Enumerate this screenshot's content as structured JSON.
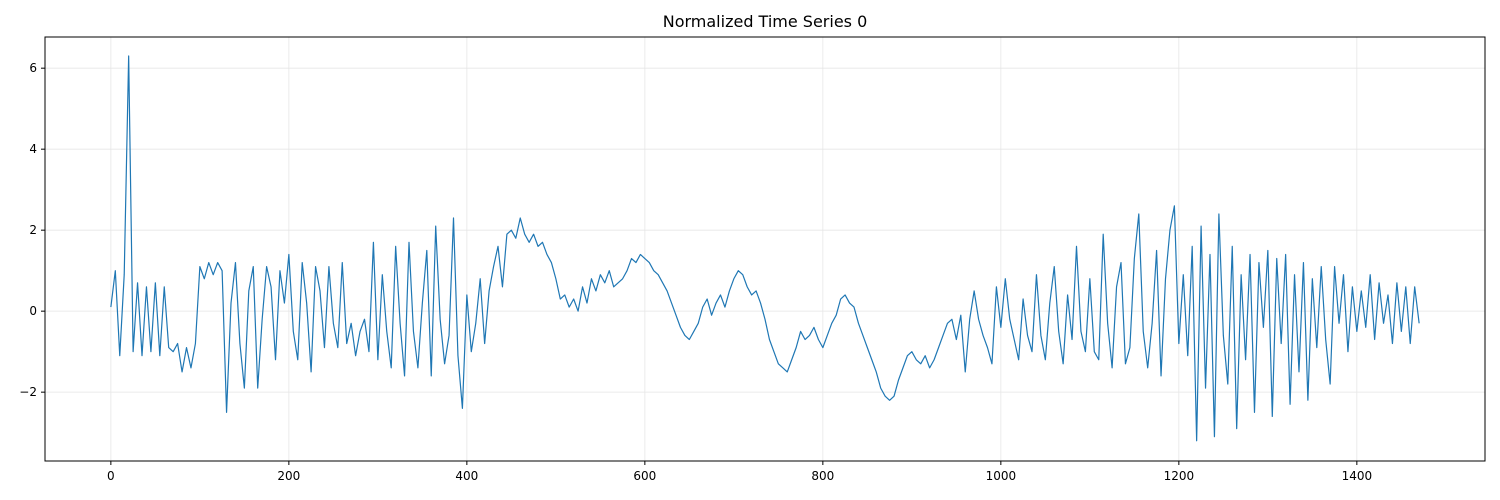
{
  "chart_data": {
    "type": "line",
    "title": "Normalized Time Series 0",
    "color": "#1f77b4",
    "grid": true,
    "xlim": [
      -74,
      1544
    ],
    "xticks": [
      0,
      200,
      400,
      600,
      800,
      1000,
      1200,
      1400
    ],
    "ylim": [
      -3.7,
      6.77
    ],
    "yticks": [
      {
        "value": -2,
        "label": "−2"
      },
      0,
      2,
      4,
      6
    ],
    "x": [
      0,
      5,
      10,
      15,
      20,
      25,
      30,
      35,
      40,
      45,
      50,
      55,
      60,
      65,
      70,
      75,
      80,
      85,
      90,
      95,
      100,
      105,
      110,
      115,
      120,
      125,
      130,
      135,
      140,
      145,
      150,
      155,
      160,
      165,
      170,
      175,
      180,
      185,
      190,
      195,
      200,
      205,
      210,
      215,
      220,
      225,
      230,
      235,
      240,
      245,
      250,
      255,
      260,
      265,
      270,
      275,
      280,
      285,
      290,
      295,
      300,
      305,
      310,
      315,
      320,
      325,
      330,
      335,
      340,
      345,
      350,
      355,
      360,
      365,
      370,
      375,
      380,
      385,
      390,
      395,
      400,
      405,
      410,
      415,
      420,
      425,
      430,
      435,
      440,
      445,
      450,
      455,
      460,
      465,
      470,
      475,
      480,
      485,
      490,
      495,
      500,
      505,
      510,
      515,
      520,
      525,
      530,
      535,
      540,
      545,
      550,
      555,
      560,
      565,
      570,
      575,
      580,
      585,
      590,
      595,
      600,
      605,
      610,
      615,
      620,
      625,
      630,
      635,
      640,
      645,
      650,
      655,
      660,
      665,
      670,
      675,
      680,
      685,
      690,
      695,
      700,
      705,
      710,
      715,
      720,
      725,
      730,
      735,
      740,
      745,
      750,
      755,
      760,
      765,
      770,
      775,
      780,
      785,
      790,
      795,
      800,
      805,
      810,
      815,
      820,
      825,
      830,
      835,
      840,
      845,
      850,
      855,
      860,
      865,
      870,
      875,
      880,
      885,
      890,
      895,
      900,
      905,
      910,
      915,
      920,
      925,
      930,
      935,
      940,
      945,
      950,
      955,
      960,
      965,
      970,
      975,
      980,
      985,
      990,
      995,
      1000,
      1005,
      1010,
      1015,
      1020,
      1025,
      1030,
      1035,
      1040,
      1045,
      1050,
      1055,
      1060,
      1065,
      1070,
      1075,
      1080,
      1085,
      1090,
      1095,
      1100,
      1105,
      1110,
      1115,
      1120,
      1125,
      1130,
      1135,
      1140,
      1145,
      1150,
      1155,
      1160,
      1165,
      1170,
      1175,
      1180,
      1185,
      1190,
      1195,
      1200,
      1205,
      1210,
      1215,
      1220,
      1225,
      1230,
      1235,
      1240,
      1245,
      1250,
      1255,
      1260,
      1265,
      1270,
      1275,
      1280,
      1285,
      1290,
      1295,
      1300,
      1305,
      1310,
      1315,
      1320,
      1325,
      1330,
      1335,
      1340,
      1345,
      1350,
      1355,
      1360,
      1365,
      1370,
      1375,
      1380,
      1385,
      1390,
      1395,
      1400,
      1405,
      1410,
      1415,
      1420,
      1425,
      1430,
      1435,
      1440,
      1445,
      1450,
      1455,
      1460,
      1465,
      1470
    ],
    "values": [
      0.1,
      1.0,
      -1.1,
      0.9,
      6.3,
      -1.0,
      0.7,
      -1.1,
      0.6,
      -1.0,
      0.7,
      -1.1,
      0.6,
      -0.9,
      -1.0,
      -0.8,
      -1.5,
      -0.9,
      -1.4,
      -0.8,
      1.1,
      0.8,
      1.2,
      0.9,
      1.2,
      1.0,
      -2.5,
      0.2,
      1.2,
      -0.8,
      -1.9,
      0.5,
      1.1,
      -1.9,
      -0.2,
      1.1,
      0.6,
      -1.2,
      1.0,
      0.2,
      1.4,
      -0.5,
      -1.2,
      1.2,
      0.2,
      -1.5,
      1.1,
      0.5,
      -0.9,
      1.1,
      -0.3,
      -0.9,
      1.2,
      -0.8,
      -0.3,
      -1.1,
      -0.5,
      -0.2,
      -1.0,
      1.7,
      -1.2,
      0.9,
      -0.5,
      -1.4,
      1.6,
      -0.3,
      -1.6,
      1.7,
      -0.5,
      -1.4,
      0.2,
      1.5,
      -1.6,
      2.1,
      -0.2,
      -1.3,
      -0.6,
      2.3,
      -1.1,
      -2.4,
      0.4,
      -1.0,
      -0.3,
      0.8,
      -0.8,
      0.5,
      1.1,
      1.6,
      0.6,
      1.9,
      2.0,
      1.8,
      2.3,
      1.9,
      1.7,
      1.9,
      1.6,
      1.7,
      1.4,
      1.2,
      0.8,
      0.3,
      0.4,
      0.1,
      0.3,
      0.0,
      0.6,
      0.2,
      0.8,
      0.5,
      0.9,
      0.7,
      1.0,
      0.6,
      0.7,
      0.8,
      1.0,
      1.3,
      1.2,
      1.4,
      1.3,
      1.2,
      1.0,
      0.9,
      0.7,
      0.5,
      0.2,
      -0.1,
      -0.4,
      -0.6,
      -0.7,
      -0.5,
      -0.3,
      0.1,
      0.3,
      -0.1,
      0.2,
      0.4,
      0.1,
      0.5,
      0.8,
      1.0,
      0.9,
      0.6,
      0.4,
      0.5,
      0.2,
      -0.2,
      -0.7,
      -1.0,
      -1.3,
      -1.4,
      -1.5,
      -1.2,
      -0.9,
      -0.5,
      -0.7,
      -0.6,
      -0.4,
      -0.7,
      -0.9,
      -0.6,
      -0.3,
      -0.1,
      0.3,
      0.4,
      0.2,
      0.1,
      -0.3,
      -0.6,
      -0.9,
      -1.2,
      -1.5,
      -1.9,
      -2.1,
      -2.2,
      -2.1,
      -1.7,
      -1.4,
      -1.1,
      -1.0,
      -1.2,
      -1.3,
      -1.1,
      -1.4,
      -1.2,
      -0.9,
      -0.6,
      -0.3,
      -0.2,
      -0.7,
      -0.1,
      -1.5,
      -0.2,
      0.5,
      -0.2,
      -0.6,
      -0.9,
      -1.3,
      0.6,
      -0.4,
      0.8,
      -0.2,
      -0.7,
      -1.2,
      0.3,
      -0.6,
      -1.0,
      0.9,
      -0.6,
      -1.2,
      0.2,
      1.1,
      -0.5,
      -1.3,
      0.4,
      -0.7,
      1.6,
      -0.5,
      -1.0,
      0.8,
      -1.0,
      -1.2,
      1.9,
      -0.3,
      -1.4,
      0.6,
      1.2,
      -1.3,
      -0.9,
      1.3,
      2.4,
      -0.5,
      -1.4,
      -0.3,
      1.5,
      -1.6,
      0.8,
      2.0,
      2.6,
      -0.8,
      0.9,
      -1.1,
      1.6,
      -3.2,
      2.1,
      -1.9,
      1.4,
      -3.1,
      2.4,
      -0.6,
      -1.8,
      1.6,
      -2.9,
      0.9,
      -1.2,
      1.4,
      -2.5,
      1.2,
      -0.4,
      1.5,
      -2.6,
      1.3,
      -0.8,
      1.4,
      -2.3,
      0.9,
      -1.5,
      1.2,
      -2.2,
      0.8,
      -0.9,
      1.1,
      -0.7,
      -1.8,
      1.1,
      -0.3,
      0.9,
      -1.0,
      0.6,
      -0.5,
      0.5,
      -0.4,
      0.9,
      -0.7,
      0.7,
      -0.3,
      0.4,
      -0.8,
      0.7,
      -0.5,
      0.6,
      -0.8,
      0.6,
      -0.3
    ]
  }
}
